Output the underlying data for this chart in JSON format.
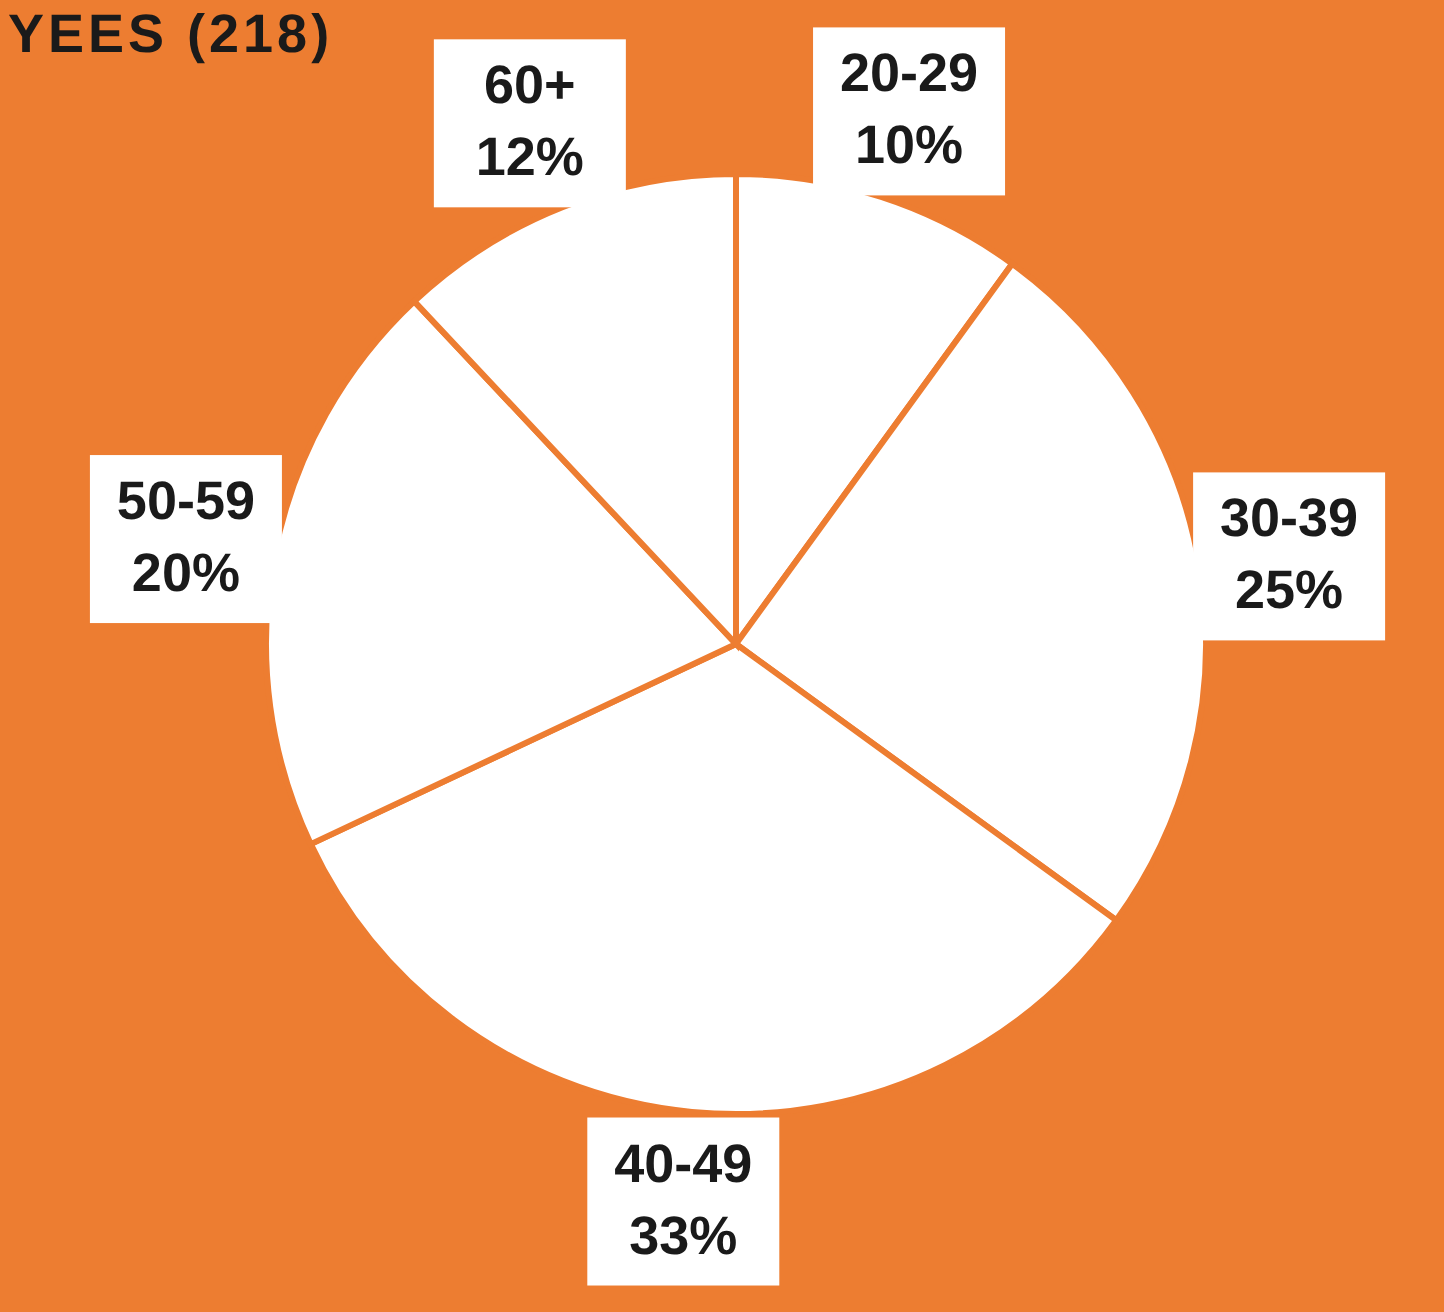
{
  "chart_data": {
    "type": "pie",
    "title": "YEES (218)",
    "categories": [
      "20-29",
      "30-39",
      "40-49",
      "50-59",
      "60+"
    ],
    "values": [
      10,
      25,
      33,
      20,
      12
    ],
    "colors": [
      "#ffffff",
      "#ffffff",
      "#ffffff",
      "#ffffff",
      "#ffffff"
    ],
    "value_labels": [
      "10%",
      "25%",
      "33%",
      "20%",
      "12%"
    ]
  }
}
